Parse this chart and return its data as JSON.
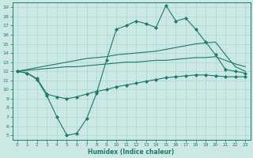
{
  "xlabel": "Humidex (Indice chaleur)",
  "background_color": "#cce8e4",
  "line_color": "#1a7a6e",
  "grid_color": "#a8d8d0",
  "xlim": [
    -0.5,
    23.5
  ],
  "ylim": [
    4.5,
    19.5
  ],
  "yticks": [
    5,
    6,
    7,
    8,
    9,
    10,
    11,
    12,
    13,
    14,
    15,
    16,
    17,
    18,
    19
  ],
  "xticks": [
    0,
    1,
    2,
    3,
    4,
    5,
    6,
    7,
    8,
    9,
    10,
    11,
    12,
    13,
    14,
    15,
    16,
    17,
    18,
    19,
    20,
    21,
    22,
    23
  ],
  "line_jagged": {
    "x": [
      0,
      1,
      2,
      3,
      4,
      5,
      6,
      7,
      8,
      9,
      10,
      11,
      12,
      13,
      14,
      15,
      16,
      17,
      18,
      19,
      20,
      21,
      22,
      23
    ],
    "y": [
      12,
      11.8,
      11.1,
      9.3,
      7.0,
      5.0,
      5.2,
      6.8,
      9.6,
      13.2,
      16.6,
      17.0,
      17.5,
      17.2,
      16.8,
      19.2,
      17.5,
      17.8,
      16.6,
      15.2,
      13.8,
      12.2,
      12.0,
      11.8
    ]
  },
  "line_upper": {
    "x": [
      0,
      1,
      2,
      3,
      4,
      5,
      6,
      7,
      8,
      9,
      10,
      11,
      12,
      13,
      14,
      15,
      16,
      17,
      18,
      19,
      20,
      21,
      22,
      23
    ],
    "y": [
      12.0,
      12.2,
      12.4,
      12.6,
      12.8,
      13.0,
      13.2,
      13.4,
      13.5,
      13.6,
      13.8,
      13.9,
      14.0,
      14.1,
      14.2,
      14.4,
      14.6,
      14.8,
      15.0,
      15.1,
      15.2,
      13.8,
      12.5,
      12.0
    ]
  },
  "line_lower": {
    "x": [
      0,
      1,
      2,
      3,
      4,
      5,
      6,
      7,
      8,
      9,
      10,
      11,
      12,
      13,
      14,
      15,
      16,
      17,
      18,
      19,
      20,
      21,
      22,
      23
    ],
    "y": [
      12.0,
      12.1,
      12.2,
      12.3,
      12.4,
      12.5,
      12.5,
      12.6,
      12.7,
      12.8,
      12.9,
      13.0,
      13.0,
      13.1,
      13.2,
      13.2,
      13.3,
      13.4,
      13.5,
      13.5,
      13.6,
      13.2,
      12.8,
      12.5
    ]
  },
  "line_bottom": {
    "x": [
      0,
      1,
      2,
      3,
      4,
      5,
      6,
      7,
      8,
      9,
      10,
      11,
      12,
      13,
      14,
      15,
      16,
      17,
      18,
      19,
      20,
      21,
      22,
      23
    ],
    "y": [
      12.0,
      11.8,
      11.2,
      9.5,
      9.2,
      9.0,
      9.2,
      9.5,
      9.8,
      10.0,
      10.3,
      10.5,
      10.7,
      10.9,
      11.1,
      11.3,
      11.4,
      11.5,
      11.6,
      11.6,
      11.5,
      11.4,
      11.4,
      11.4
    ]
  }
}
